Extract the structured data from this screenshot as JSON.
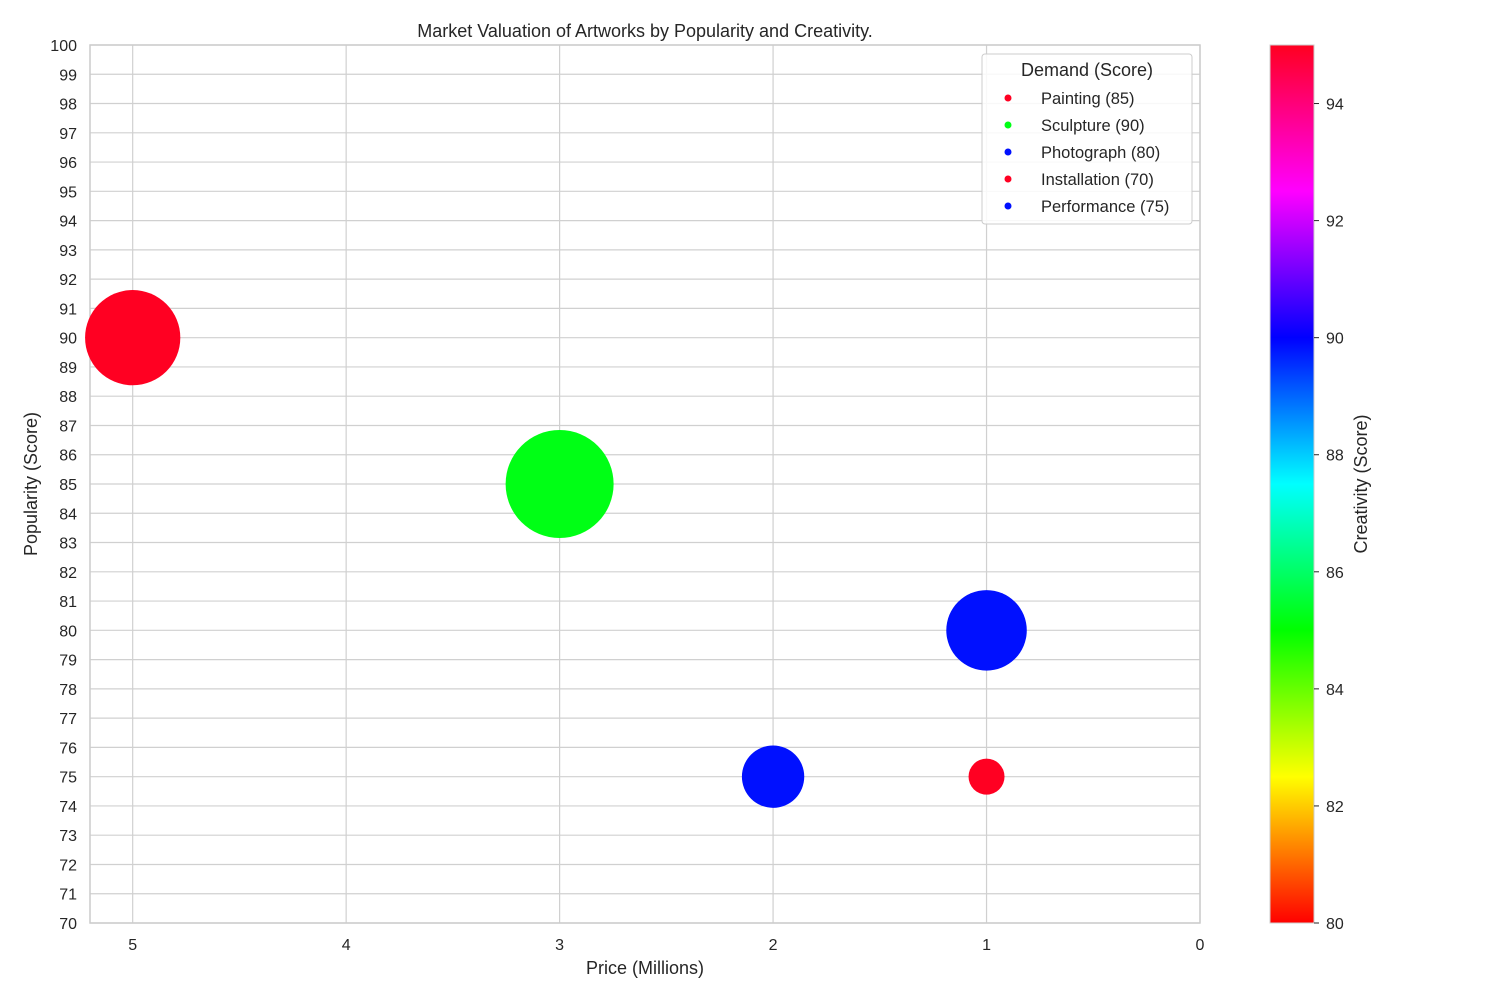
{
  "chart_data": {
    "type": "scatter",
    "title": "Market Valuation of Artworks by Popularity and Creativity.",
    "xlabel": "Price (Millions)",
    "ylabel": "Popularity (Score)",
    "x_inverted": true,
    "xlim": [
      5.2,
      0
    ],
    "ylim": [
      70,
      100
    ],
    "x_ticks": [
      "5",
      "4",
      "3",
      "2",
      "1",
      "0"
    ],
    "x_tick_values": [
      5,
      4,
      3,
      2,
      1,
      0
    ],
    "y_ticks": [
      "70",
      "71",
      "72",
      "73",
      "74",
      "75",
      "76",
      "77",
      "78",
      "79",
      "80",
      "81",
      "82",
      "83",
      "84",
      "85",
      "86",
      "87",
      "88",
      "89",
      "90",
      "91",
      "92",
      "93",
      "94",
      "95",
      "96",
      "97",
      "98",
      "99",
      "100"
    ],
    "grid": true,
    "legend": {
      "title": "Demand (Score)",
      "placement": "top-right",
      "entries": [
        {
          "label": "Painting (85)",
          "color": "#ff0022"
        },
        {
          "label": "Sculpture (90)",
          "color": "#00ff15"
        },
        {
          "label": "Photograph (80)",
          "color": "#0010ff"
        },
        {
          "label": "Installation (70)",
          "color": "#ff0022"
        },
        {
          "label": "Performance (75)",
          "color": "#0010ff"
        }
      ]
    },
    "colorbar": {
      "label": "Creativity (Score)",
      "range": [
        80,
        95
      ],
      "ticks": [
        "80",
        "82",
        "84",
        "86",
        "88",
        "90",
        "92",
        "94"
      ],
      "tick_values": [
        80,
        82,
        84,
        86,
        88,
        90,
        92,
        94
      ],
      "colormap": "hsv"
    },
    "points": [
      {
        "name": "Painting",
        "price": 5,
        "popularity": 90,
        "creativity": 95,
        "demand": 85,
        "color": "#ff0022"
      },
      {
        "name": "Sculpture",
        "price": 3,
        "popularity": 85,
        "creativity": 85,
        "demand": 90,
        "color": "#00ff15"
      },
      {
        "name": "Photograph",
        "price": 1,
        "popularity": 80,
        "creativity": 90,
        "demand": 80,
        "color": "#0010ff"
      },
      {
        "name": "Installation",
        "price": 1,
        "popularity": 75,
        "creativity": 80,
        "demand": 70,
        "color": "#ff0022"
      },
      {
        "name": "Performance",
        "price": 2,
        "popularity": 75,
        "creativity": 90,
        "demand": 75,
        "color": "#0010ff"
      }
    ],
    "colors": {
      "grid": "#d0d0d0",
      "spine": "#cccccc",
      "text": "#262626"
    }
  }
}
